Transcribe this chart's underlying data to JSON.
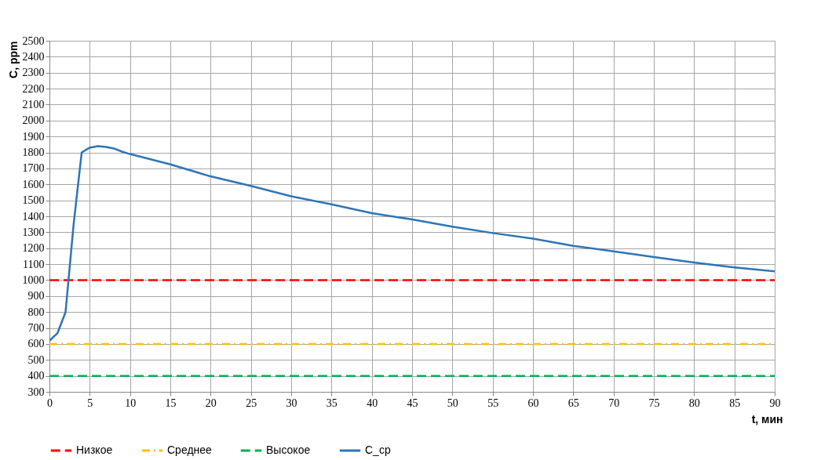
{
  "chart_data": {
    "type": "line",
    "xlabel": "t, мин",
    "ylabel": "C, ppm",
    "xlim": [
      0,
      90
    ],
    "xticks": [
      0,
      5,
      10,
      15,
      20,
      25,
      30,
      35,
      40,
      45,
      50,
      55,
      60,
      65,
      70,
      75,
      80,
      85,
      90
    ],
    "ylim": [
      300,
      2500
    ],
    "yticks": [
      300,
      400,
      500,
      600,
      700,
      800,
      900,
      1000,
      1100,
      1200,
      1300,
      1400,
      1500,
      1600,
      1700,
      1800,
      1900,
      2000,
      2100,
      2200,
      2300,
      2400,
      2500
    ],
    "grid": true,
    "legend": "bottom",
    "marker": "none",
    "x": [
      0,
      1,
      2,
      3,
      4,
      5,
      6,
      7,
      8,
      9,
      10,
      15,
      20,
      25,
      30,
      35,
      40,
      45,
      50,
      55,
      60,
      65,
      70,
      75,
      80,
      85,
      90
    ],
    "series": [
      {
        "name": "Низкое",
        "color": "#ff0000",
        "line_style": "dashed",
        "values": [
          1000,
          1000,
          1000,
          1000,
          1000,
          1000,
          1000,
          1000,
          1000,
          1000,
          1000,
          1000,
          1000,
          1000,
          1000,
          1000,
          1000,
          1000,
          1000,
          1000,
          1000,
          1000,
          1000,
          1000,
          1000,
          1000,
          1000
        ]
      },
      {
        "name": "Среднее",
        "color": "#ffc000",
        "line_style": "dashdot",
        "values": [
          600,
          600,
          600,
          600,
          600,
          600,
          600,
          600,
          600,
          600,
          600,
          600,
          600,
          600,
          600,
          600,
          600,
          600,
          600,
          600,
          600,
          600,
          600,
          600,
          600,
          600,
          600
        ]
      },
      {
        "name": "Высокое",
        "color": "#00b050",
        "line_style": "dashed",
        "values": [
          400,
          400,
          400,
          400,
          400,
          400,
          400,
          400,
          400,
          400,
          400,
          400,
          400,
          400,
          400,
          400,
          400,
          400,
          400,
          400,
          400,
          400,
          400,
          400,
          400,
          400,
          400
        ]
      },
      {
        "name": "C_ср",
        "color": "#2e75b6",
        "line_style": "solid",
        "values": [
          620,
          668,
          800,
          1350,
          1800,
          1830,
          1840,
          1835,
          1825,
          1805,
          1790,
          1725,
          1650,
          1590,
          1525,
          1475,
          1420,
          1380,
          1335,
          1295,
          1260,
          1215,
          1180,
          1145,
          1110,
          1080,
          1055
        ]
      }
    ]
  }
}
